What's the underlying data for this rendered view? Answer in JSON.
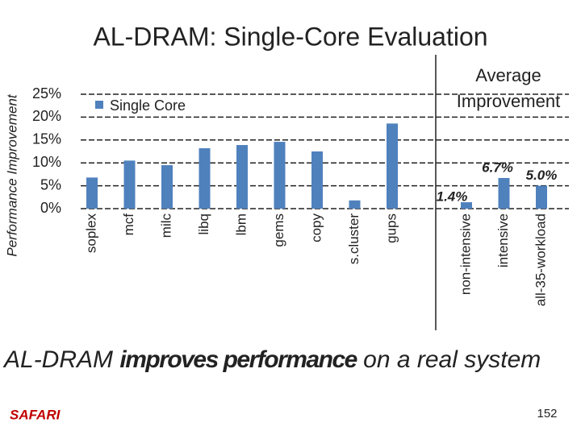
{
  "chart_data": {
    "type": "bar",
    "title": "AL-DRAM: Single-Core Evaluation",
    "y_label": "Performance Improvement",
    "categories": [
      "soplex",
      "mcf",
      "milc",
      "libq",
      "lbm",
      "gems",
      "copy",
      "s.cluster",
      "gups",
      "non-intensive",
      "intensive",
      "all-35-workload"
    ],
    "series": [
      {
        "name": "Single Core",
        "color": "#4f81bd",
        "values": [
          6.8,
          10.5,
          9.5,
          13.2,
          13.9,
          14.6,
          12.5,
          1.8,
          18.6,
          1.4,
          6.7,
          5.0
        ],
        "value_labels": [
          null,
          null,
          null,
          null,
          null,
          null,
          null,
          null,
          null,
          "1.4%",
          "6.7%",
          "5.0%"
        ]
      }
    ],
    "annotation": "Average Improvement",
    "ylim": [
      0,
      25
    ],
    "yticks": [
      {
        "value": 0,
        "label": "0%"
      },
      {
        "value": 5,
        "label": "5%"
      },
      {
        "value": 10,
        "label": "10%"
      },
      {
        "value": 15,
        "label": "15%"
      },
      {
        "value": 20,
        "label": "20%"
      },
      {
        "value": 25,
        "label": "25%"
      }
    ],
    "grid": true
  },
  "footer": {
    "message": [
      "AL-DRAM ",
      "improves performance",
      " on a real system"
    ],
    "logo": "SAFARI",
    "page": "152"
  }
}
